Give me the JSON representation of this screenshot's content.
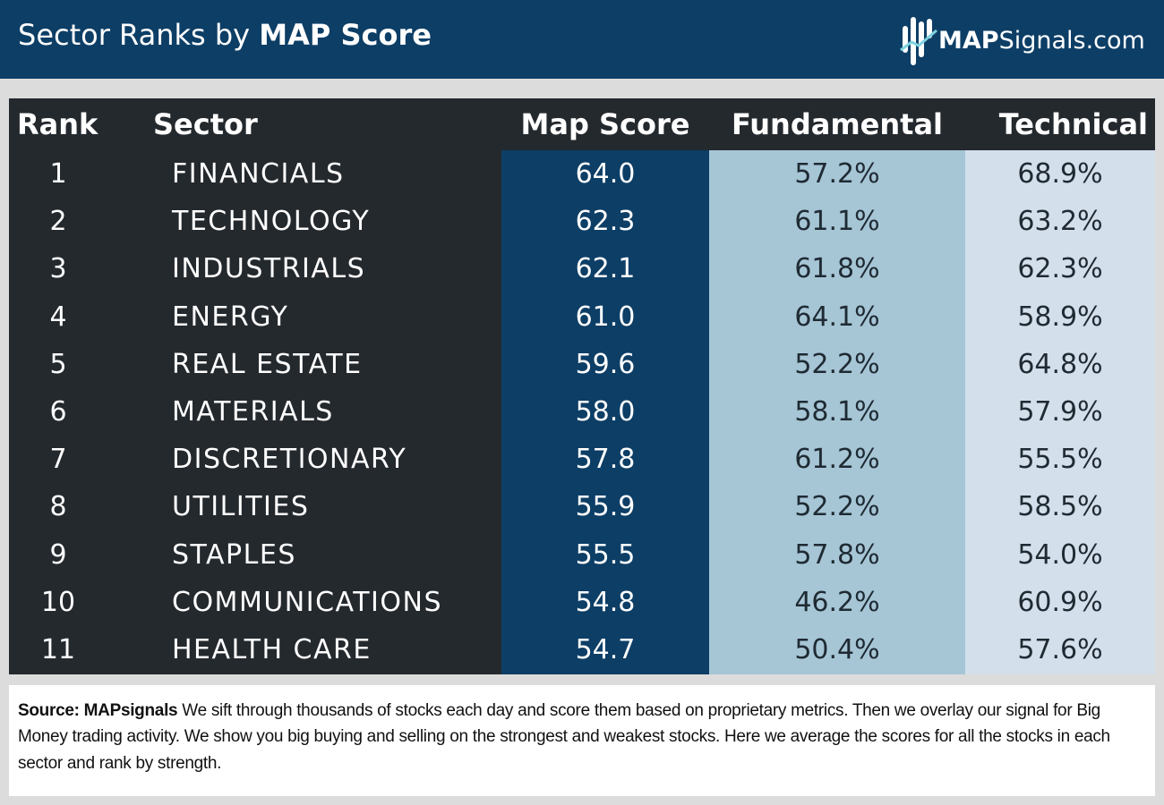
{
  "header": {
    "title_regular": "Sector Ranks by ",
    "title_bold": "MAP Score",
    "brand_bold": "MAP",
    "brand_regular": "Signals.com",
    "brand_icon": "map-signals-logo-icon"
  },
  "colors": {
    "header_bg": "#0d3e66",
    "table_bg": "#24292e",
    "map_score_col": "#0d3e66",
    "fundamental_col": "#a6c6d6",
    "technical_col": "#d4dfec",
    "page_bg": "#dcdcdc"
  },
  "chart_data": {
    "type": "table",
    "columns": [
      "Rank",
      "Sector",
      "Map Score",
      "Fundamental",
      "Technical"
    ],
    "rows": [
      {
        "rank": "1",
        "sector": "FINANCIALS",
        "map_score": "64.0",
        "fundamental": "57.2%",
        "technical": "68.9%"
      },
      {
        "rank": "2",
        "sector": "TECHNOLOGY",
        "map_score": "62.3",
        "fundamental": "61.1%",
        "technical": "63.2%"
      },
      {
        "rank": "3",
        "sector": "INDUSTRIALS",
        "map_score": "62.1",
        "fundamental": "61.8%",
        "technical": "62.3%"
      },
      {
        "rank": "4",
        "sector": "ENERGY",
        "map_score": "61.0",
        "fundamental": "64.1%",
        "technical": "58.9%"
      },
      {
        "rank": "5",
        "sector": "REAL ESTATE",
        "map_score": "59.6",
        "fundamental": "52.2%",
        "technical": "64.8%"
      },
      {
        "rank": "6",
        "sector": "MATERIALS",
        "map_score": "58.0",
        "fundamental": "58.1%",
        "technical": "57.9%"
      },
      {
        "rank": "7",
        "sector": "DISCRETIONARY",
        "map_score": "57.8",
        "fundamental": "61.2%",
        "technical": "55.5%"
      },
      {
        "rank": "8",
        "sector": "UTILITIES",
        "map_score": "55.9",
        "fundamental": "52.2%",
        "technical": "58.5%"
      },
      {
        "rank": "9",
        "sector": "STAPLES",
        "map_score": "55.5",
        "fundamental": "57.8%",
        "technical": "54.0%"
      },
      {
        "rank": "10",
        "sector": "COMMUNICATIONS",
        "map_score": "54.8",
        "fundamental": "46.2%",
        "technical": "60.9%"
      },
      {
        "rank": "11",
        "sector": "HEALTH CARE",
        "map_score": "54.7",
        "fundamental": "50.4%",
        "technical": "57.6%"
      }
    ]
  },
  "footer": {
    "source_label": "Source:  MAPsignals",
    "text": "  We sift through thousands of stocks each day and score them based on proprietary metrics. Then we overlay our signal for Big Money trading activity. We show you big buying and selling on the strongest and weakest stocks. Here we average the scores for all the stocks in each sector and rank by strength."
  }
}
